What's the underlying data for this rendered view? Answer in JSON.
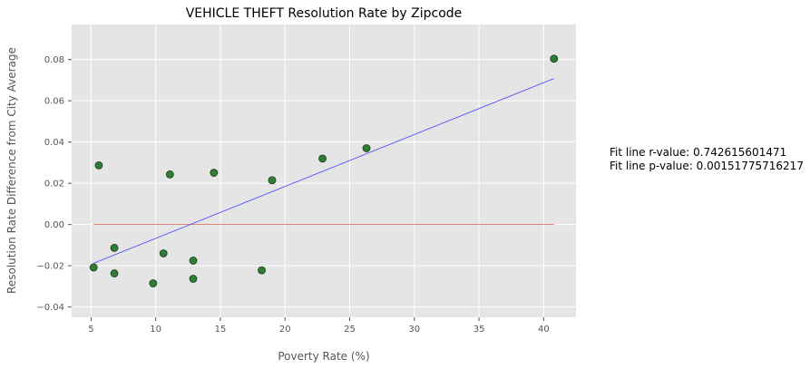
{
  "chart_data": {
    "type": "scatter",
    "title": "VEHICLE THEFT Resolution Rate by Zipcode",
    "xlabel": "Poverty Rate (%)",
    "ylabel": "Resolution Rate Difference from City Average",
    "xlim": [
      3.5,
      42.5
    ],
    "ylim": [
      -0.045,
      0.097
    ],
    "xticks": [
      5,
      10,
      15,
      20,
      25,
      30,
      35,
      40
    ],
    "yticks": [
      -0.04,
      -0.02,
      0.0,
      0.02,
      0.04,
      0.06,
      0.08
    ],
    "ytick_labels": [
      "−0.04",
      "−0.02",
      "0.00",
      "0.02",
      "0.04",
      "0.06",
      "0.08"
    ],
    "grid": true,
    "points": [
      {
        "x": 5.2,
        "y": -0.0208
      },
      {
        "x": 5.6,
        "y": 0.0287
      },
      {
        "x": 6.8,
        "y": -0.0113
      },
      {
        "x": 6.8,
        "y": -0.0237
      },
      {
        "x": 9.8,
        "y": -0.0285
      },
      {
        "x": 10.6,
        "y": -0.014
      },
      {
        "x": 11.1,
        "y": 0.0243
      },
      {
        "x": 12.9,
        "y": -0.0175
      },
      {
        "x": 12.9,
        "y": -0.0263
      },
      {
        "x": 14.5,
        "y": 0.0251
      },
      {
        "x": 18.2,
        "y": -0.0222
      },
      {
        "x": 19.0,
        "y": 0.0215
      },
      {
        "x": 22.9,
        "y": 0.032
      },
      {
        "x": 26.3,
        "y": 0.037
      },
      {
        "x": 40.8,
        "y": 0.0804
      }
    ],
    "fit_line": {
      "x": [
        5.2,
        40.8
      ],
      "y": [
        -0.0188,
        0.0708
      ]
    },
    "zero_line": {
      "x": [
        5.2,
        40.8
      ],
      "y": [
        0.0,
        0.0
      ]
    },
    "annotations": [
      "Fit line r-value: 0.742615601471",
      "Fit line p-value: 0.00151775716217"
    ],
    "colors": {
      "points_fill": "#2e7d32",
      "points_edge": "#1a3d1a",
      "fit_line": "#4444ff",
      "zero_line": "#e05a4a",
      "plot_bg": "#e5e5e5",
      "grid": "#ffffff"
    }
  }
}
